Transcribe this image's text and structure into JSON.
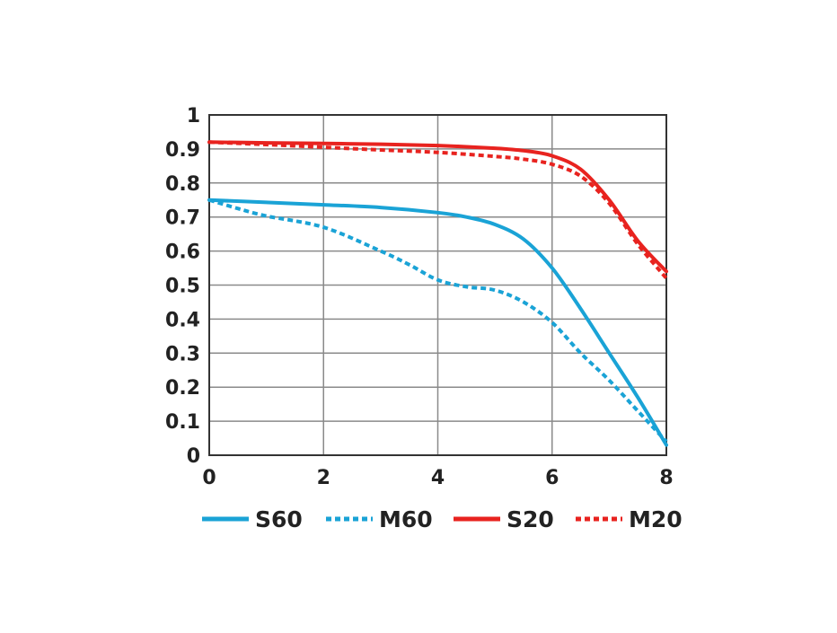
{
  "chart_data": {
    "type": "line",
    "xlim": [
      0,
      8
    ],
    "ylim": [
      0,
      1
    ],
    "x_ticks": [
      "0",
      "2",
      "4",
      "6",
      "8"
    ],
    "y_ticks": [
      "0",
      "0.1",
      "0.2",
      "0.3",
      "0.4",
      "0.5",
      "0.6",
      "0.7",
      "0.8",
      "0.9",
      "1"
    ],
    "grid": true,
    "legend_position": "bottom",
    "series": [
      {
        "name": "S60",
        "color": "#1aa3d6",
        "dashed": false,
        "x": [
          0,
          1,
          2,
          3,
          4,
          4.5,
          5,
          5.5,
          6,
          6.5,
          7,
          7.5,
          8
        ],
        "y": [
          0.75,
          0.743,
          0.736,
          0.728,
          0.713,
          0.7,
          0.678,
          0.635,
          0.55,
          0.43,
          0.3,
          0.17,
          0.03
        ]
      },
      {
        "name": "M60",
        "color": "#1aa3d6",
        "dashed": true,
        "x": [
          0,
          0.5,
          1,
          2,
          3,
          3.5,
          4,
          4.5,
          5,
          5.5,
          6,
          6.5,
          7,
          7.5,
          8
        ],
        "y": [
          0.75,
          0.725,
          0.703,
          0.67,
          0.6,
          0.56,
          0.515,
          0.495,
          0.485,
          0.45,
          0.39,
          0.3,
          0.22,
          0.13,
          0.04
        ]
      },
      {
        "name": "S20",
        "color": "#e8231f",
        "dashed": false,
        "x": [
          0,
          1,
          2,
          3,
          4,
          5,
          5.5,
          6,
          6.5,
          7,
          7.5,
          8
        ],
        "y": [
          0.92,
          0.918,
          0.916,
          0.914,
          0.91,
          0.902,
          0.895,
          0.88,
          0.84,
          0.75,
          0.63,
          0.54
        ]
      },
      {
        "name": "M20",
        "color": "#e8231f",
        "dashed": true,
        "x": [
          0,
          1,
          2,
          3,
          4,
          5,
          5.5,
          6,
          6.5,
          7,
          7.5,
          8
        ],
        "y": [
          0.92,
          0.913,
          0.905,
          0.897,
          0.89,
          0.878,
          0.87,
          0.855,
          0.82,
          0.74,
          0.62,
          0.52
        ]
      }
    ]
  }
}
